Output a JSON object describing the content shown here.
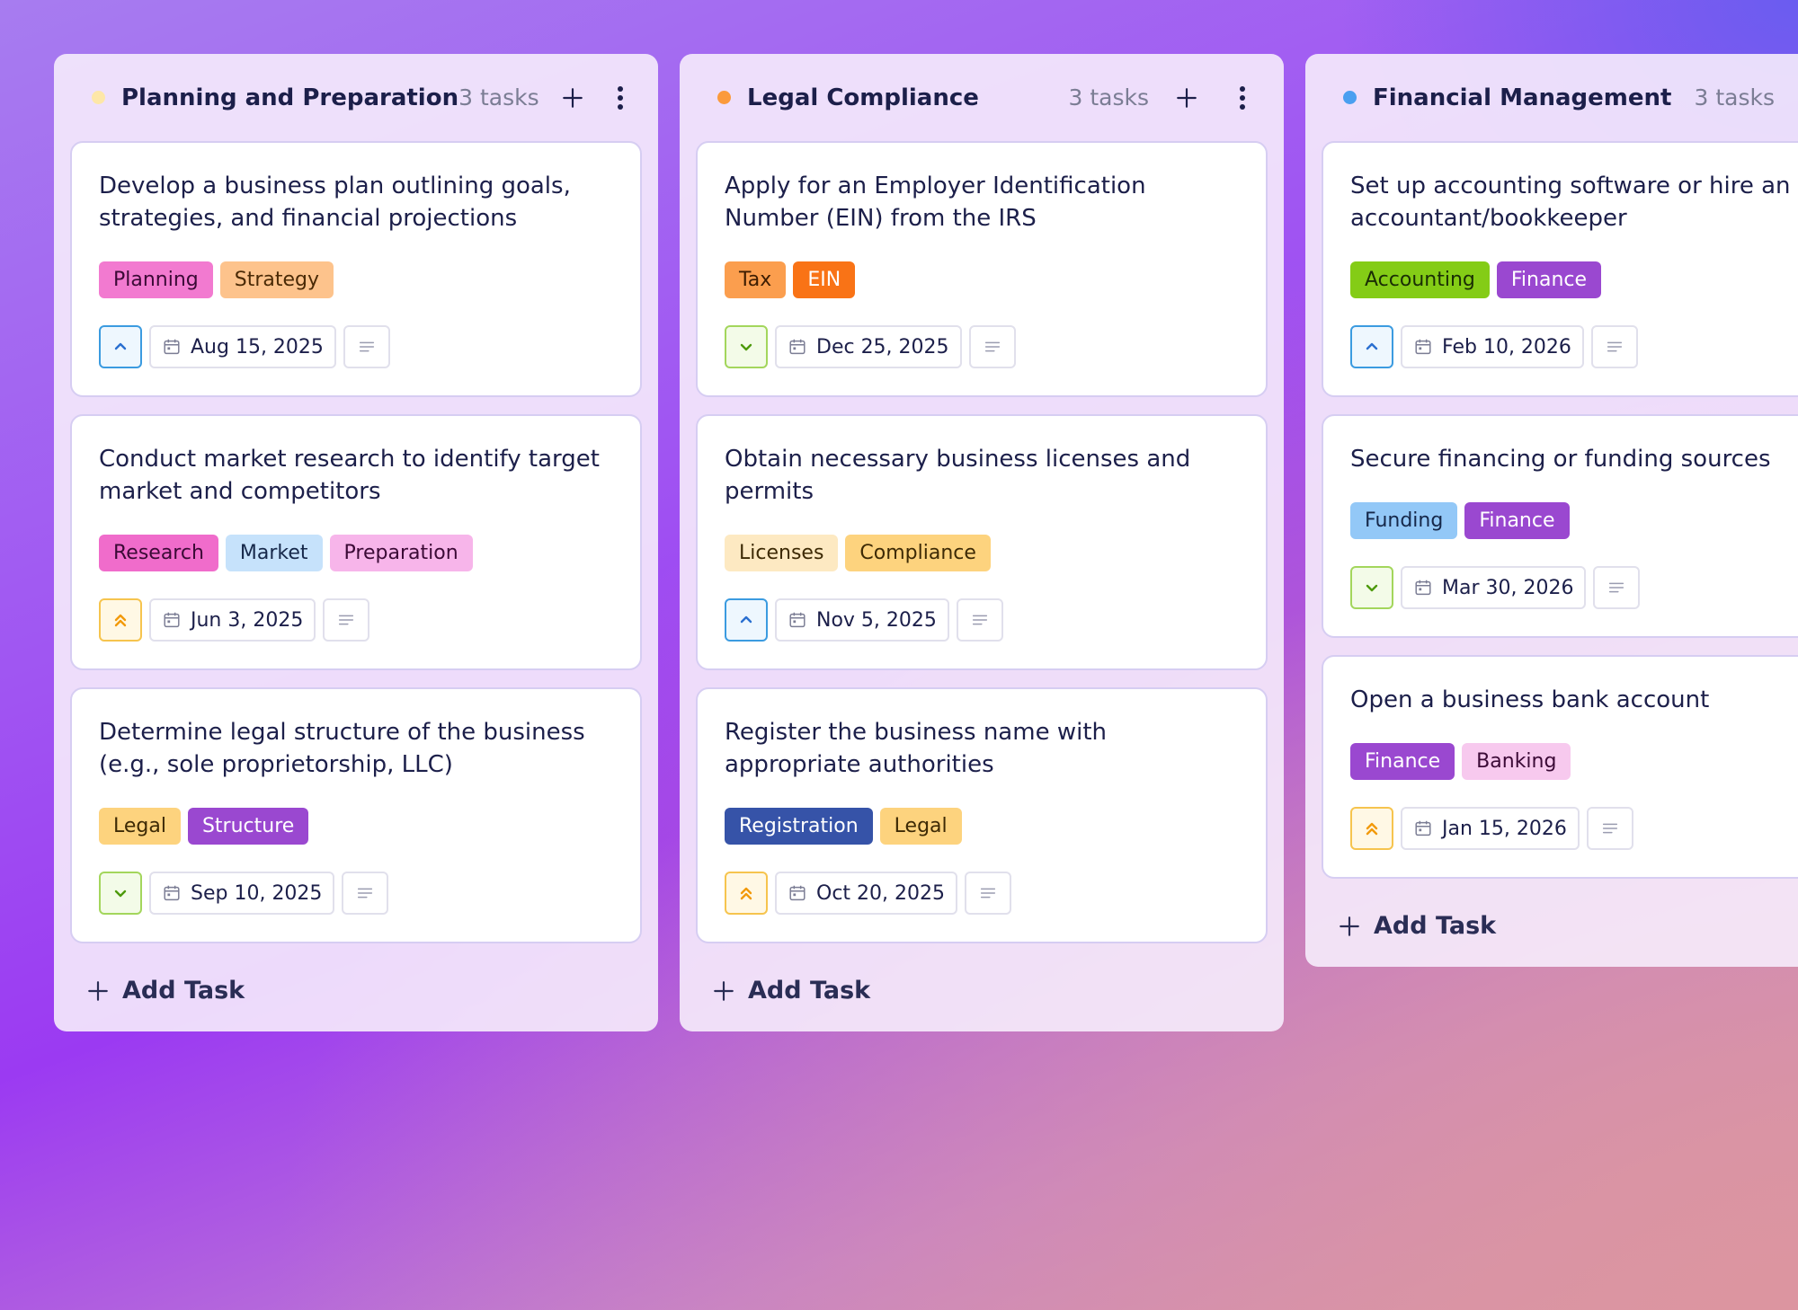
{
  "columns": [
    {
      "title": "Planning and Preparation",
      "count": "3 tasks",
      "dot_color": "#fde7a8",
      "add": "Add Task",
      "cards": [
        {
          "title": "Develop a business plan outlining goals, strategies, and financial projections",
          "tags": [
            {
              "label": "Planning",
              "bg": "#f27ad0",
              "fg": "#3b0a36"
            },
            {
              "label": "Strategy",
              "bg": "#fdc38c",
              "fg": "#4a2a06"
            }
          ],
          "priority_icon": "up",
          "date": "Aug 15, 2025"
        },
        {
          "title": "Conduct market research to identify target market and competitors",
          "tags": [
            {
              "label": "Research",
              "bg": "#f06ccb",
              "fg": "#3b0a36"
            },
            {
              "label": "Market",
              "bg": "#c6e2fb",
              "fg": "#16284a"
            },
            {
              "label": "Preparation",
              "bg": "#f7b5ea",
              "fg": "#3b0a36"
            }
          ],
          "priority_icon": "double-up",
          "date": "Jun 3, 2025"
        },
        {
          "title": "Determine legal structure of the business (e.g., sole proprietorship, LLC)",
          "tags": [
            {
              "label": "Legal",
              "bg": "#fdd37e",
              "fg": "#3d2a05"
            },
            {
              "label": "Structure",
              "bg": "#9a48d0",
              "fg": "#ffffff"
            }
          ],
          "priority_icon": "down",
          "date": "Sep 10, 2025"
        }
      ]
    },
    {
      "title": "Legal Compliance",
      "count": "3 tasks",
      "dot_color": "#fb9a3c",
      "add": "Add Task",
      "cards": [
        {
          "title": "Apply for an Employer Identification Number (EIN) from the IRS",
          "tags": [
            {
              "label": "Tax",
              "bg": "#fb9e4e",
              "fg": "#3d1d02"
            },
            {
              "label": "EIN",
              "bg": "#f97316",
              "fg": "#ffffff"
            }
          ],
          "priority_icon": "down",
          "date": "Dec 25, 2025"
        },
        {
          "title": "Obtain necessary business licenses and permits",
          "tags": [
            {
              "label": "Licenses",
              "bg": "#fde9c2",
              "fg": "#3d2a05"
            },
            {
              "label": "Compliance",
              "bg": "#fdd37e",
              "fg": "#3d2a05"
            }
          ],
          "priority_icon": "up",
          "date": "Nov 5, 2025"
        },
        {
          "title": "Register the business name with appropriate authorities",
          "tags": [
            {
              "label": "Registration",
              "bg": "#3653a8",
              "fg": "#ffffff"
            },
            {
              "label": "Legal",
              "bg": "#fdd37e",
              "fg": "#3d2a05"
            }
          ],
          "priority_icon": "double-up",
          "date": "Oct 20, 2025"
        }
      ]
    },
    {
      "title": "Financial Management",
      "count": "3 tasks",
      "dot_color": "#4a9ff0",
      "add": "Add Task",
      "cards": [
        {
          "title": "Set up accounting software or hire an accountant/bookkeeper",
          "tags": [
            {
              "label": "Accounting",
              "bg": "#84cc16",
              "fg": "#1a2e05"
            },
            {
              "label": "Finance",
              "bg": "#9a48d0",
              "fg": "#ffffff"
            }
          ],
          "priority_icon": "up",
          "date": "Feb 10, 2026"
        },
        {
          "title": "Secure financing or funding sources",
          "tags": [
            {
              "label": "Funding",
              "bg": "#93c8f7",
              "fg": "#16284a"
            },
            {
              "label": "Finance",
              "bg": "#9a48d0",
              "fg": "#ffffff"
            }
          ],
          "priority_icon": "down",
          "date": "Mar 30, 2026"
        },
        {
          "title": "Open a business bank account",
          "tags": [
            {
              "label": "Finance",
              "bg": "#9a48d0",
              "fg": "#ffffff"
            },
            {
              "label": "Banking",
              "bg": "#f7c9ee",
              "fg": "#3b0a36"
            }
          ],
          "priority_icon": "double-up",
          "date": "Jan 15, 2026"
        }
      ]
    }
  ]
}
